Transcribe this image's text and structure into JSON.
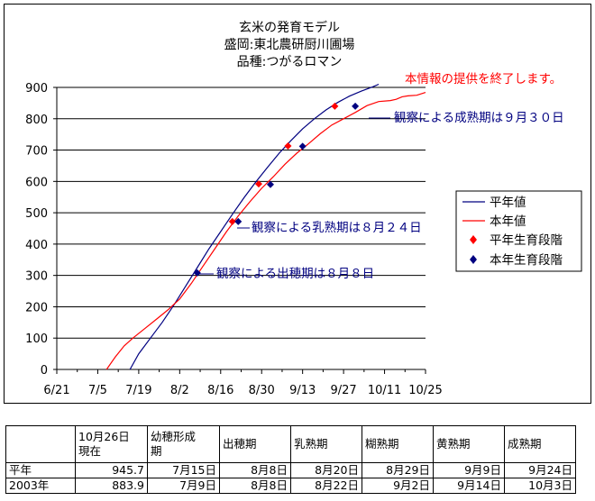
{
  "chart_data": {
    "type": "line",
    "title": [
      "玄米の発育モデル",
      "盛岡:東北農研厨川圃場",
      "品種:つがるロマン"
    ],
    "ylim": [
      0,
      900
    ],
    "yticks": [
      0,
      100,
      200,
      300,
      400,
      500,
      600,
      700,
      800,
      900
    ],
    "xlim": [
      0,
      126
    ],
    "xticks": [
      {
        "x": 0,
        "label": "6/21"
      },
      {
        "x": 14,
        "label": "7/5"
      },
      {
        "x": 28,
        "label": "7/19"
      },
      {
        "x": 42,
        "label": "8/2"
      },
      {
        "x": 56,
        "label": "8/16"
      },
      {
        "x": 70,
        "label": "8/30"
      },
      {
        "x": 84,
        "label": "9/13"
      },
      {
        "x": 98,
        "label": "9/27"
      },
      {
        "x": 112,
        "label": "10/11"
      },
      {
        "x": 126,
        "label": "10/25"
      }
    ],
    "grid": true,
    "legend_position": "right",
    "series": [
      {
        "name": "平年値",
        "color": "#000080",
        "points": [
          [
            25,
            0
          ],
          [
            28,
            50
          ],
          [
            32,
            100
          ],
          [
            36,
            150
          ],
          [
            40,
            205
          ],
          [
            44,
            265
          ],
          [
            48,
            325
          ],
          [
            52,
            385
          ],
          [
            56,
            440
          ],
          [
            60,
            495
          ],
          [
            64,
            548
          ],
          [
            68,
            598
          ],
          [
            72,
            645
          ],
          [
            76,
            690
          ],
          [
            80,
            730
          ],
          [
            84,
            768
          ],
          [
            88,
            800
          ],
          [
            92,
            828
          ],
          [
            96,
            852
          ],
          [
            100,
            872
          ],
          [
            104,
            888
          ],
          [
            108,
            902
          ],
          [
            110,
            910
          ]
        ]
      },
      {
        "name": "本年値",
        "color": "#ff0000",
        "points": [
          [
            17,
            0
          ],
          [
            20,
            40
          ],
          [
            23,
            75
          ],
          [
            26,
            100
          ],
          [
            30,
            130
          ],
          [
            34,
            160
          ],
          [
            38,
            190
          ],
          [
            42,
            225
          ],
          [
            46,
            275
          ],
          [
            50,
            330
          ],
          [
            54,
            385
          ],
          [
            58,
            440
          ],
          [
            62,
            490
          ],
          [
            66,
            535
          ],
          [
            70,
            578
          ],
          [
            74,
            615
          ],
          [
            78,
            655
          ],
          [
            82,
            690
          ],
          [
            86,
            720
          ],
          [
            90,
            752
          ],
          [
            94,
            780
          ],
          [
            98,
            800
          ],
          [
            102,
            820
          ],
          [
            106,
            842
          ],
          [
            110,
            855
          ],
          [
            114,
            858
          ],
          [
            116,
            862
          ],
          [
            118,
            870
          ],
          [
            120,
            873
          ],
          [
            123,
            875
          ],
          [
            126,
            884
          ]
        ]
      }
    ],
    "stage_series": [
      {
        "name": "平年生育段階",
        "color": "#ff0000",
        "marker": "diamond",
        "points": [
          [
            60,
            472
          ],
          [
            69,
            592
          ],
          [
            79,
            713
          ],
          [
            95,
            840
          ]
        ]
      },
      {
        "name": "本年生育段階",
        "color": "#000080",
        "marker": "diamond",
        "points": [
          [
            48,
            308
          ],
          [
            62,
            472
          ],
          [
            73,
            590
          ],
          [
            84,
            712
          ],
          [
            102,
            840
          ]
        ]
      }
    ],
    "annotations": [
      {
        "text": "本情報の提供を終了します。",
        "color": "#ff0000"
      },
      {
        "text": "観察による成熟期は９月３０日",
        "color": "#000080"
      },
      {
        "text": "観察による乳熟期は８月２４日",
        "color": "#000080"
      },
      {
        "text": "観察による出穂期は８月８日",
        "color": "#000080"
      }
    ]
  },
  "table": {
    "headers": [
      "",
      "10月26日現在",
      "幼穂形成期",
      "出穂期",
      "乳熟期",
      "糊熟期",
      "黄熟期",
      "成熟期"
    ],
    "header_lines": [
      [
        ""
      ],
      [
        "10月26日",
        "現在"
      ],
      [
        "幼穂形成",
        "期"
      ],
      [
        "出穂期"
      ],
      [
        "乳熟期"
      ],
      [
        "糊熟期"
      ],
      [
        "黄熟期"
      ],
      [
        "成熟期"
      ]
    ],
    "rows": [
      [
        "平年",
        "945.7",
        "7月15日",
        "8月8日",
        "8月20日",
        "8月29日",
        "9月9日",
        "9月24日"
      ],
      [
        "2003年",
        "883.9",
        "7月9日",
        "8月8日",
        "8月22日",
        "9月2日",
        "9月14日",
        "10月3日"
      ]
    ]
  }
}
